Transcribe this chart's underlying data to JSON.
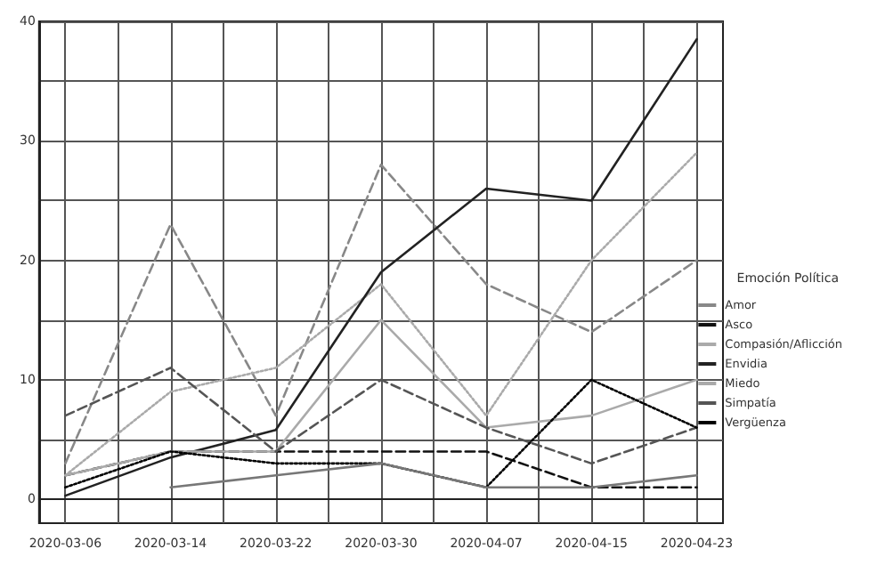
{
  "chart_data": {
    "type": "line",
    "legend_title": "Emoción Política",
    "legend": "right",
    "grid": true,
    "marker": "none",
    "x": [
      "2020-03-06",
      "2020-03-14",
      "2020-03-22",
      "2020-03-30",
      "2020-04-07",
      "2020-04-15",
      "2020-04-23"
    ],
    "xlim": [
      "2020-03-04",
      "2020-04-25"
    ],
    "xticks": [
      {
        "value": "2020-03-06",
        "label": "2020-03-06"
      },
      {
        "value": "2020-03-10",
        "label": null
      },
      {
        "value": "2020-03-14",
        "label": "2020-03-14"
      },
      {
        "value": "2020-03-18",
        "label": null
      },
      {
        "value": "2020-03-22",
        "label": "2020-03-22"
      },
      {
        "value": "2020-03-26",
        "label": null
      },
      {
        "value": "2020-03-30",
        "label": "2020-03-30"
      },
      {
        "value": "2020-04-03",
        "label": null
      },
      {
        "value": "2020-04-07",
        "label": "2020-04-07"
      },
      {
        "value": "2020-04-11",
        "label": null
      },
      {
        "value": "2020-04-15",
        "label": "2020-04-15"
      },
      {
        "value": "2020-04-19",
        "label": null
      },
      {
        "value": "2020-04-23",
        "label": "2020-04-23"
      }
    ],
    "ylim": [
      -2,
      40
    ],
    "yticks": [
      0,
      {
        "value": 5,
        "label": null
      },
      10,
      {
        "value": 15,
        "label": null
      },
      20,
      {
        "value": 25,
        "label": null
      },
      30,
      {
        "value": 35,
        "label": null
      },
      40
    ],
    "series": [
      {
        "name": "Amor",
        "color": "#888888",
        "line_style": "dashed",
        "values": [
          3,
          23,
          7,
          28,
          18,
          14,
          20
        ]
      },
      {
        "name": "Asco",
        "color": "#111111",
        "line_style": "dashed",
        "values": [
          2,
          4,
          4,
          4,
          4,
          1,
          1
        ]
      },
      {
        "name": "Compasión/Aflicción",
        "color": "#aaaaaa",
        "line_style": "dotted",
        "values": [
          2,
          9,
          11,
          18,
          7,
          20,
          29
        ]
      },
      {
        "name": "Envidia",
        "color": "#222222",
        "line_style": "solid",
        "values": [
          0.3,
          3.5,
          5.8,
          19,
          26,
          25,
          38.5
        ]
      },
      {
        "name": "Miedo",
        "color": "#aaaaaa",
        "line_style": "solid",
        "values": [
          2,
          4,
          4,
          15,
          6,
          7,
          10
        ]
      },
      {
        "name": "Simpatía",
        "color": "#555555",
        "line_style": "dashed",
        "values": [
          7,
          11,
          4,
          10,
          6,
          3,
          6
        ]
      },
      {
        "name": "Vergüenza",
        "color": "#000000",
        "line_style": "dotted",
        "values": [
          1,
          4,
          3,
          3,
          1,
          10,
          6
        ]
      },
      {
        "color": "#777777",
        "line_style": "solid",
        "values": [
          null,
          1,
          2,
          3,
          1,
          1,
          2
        ]
      }
    ]
  }
}
